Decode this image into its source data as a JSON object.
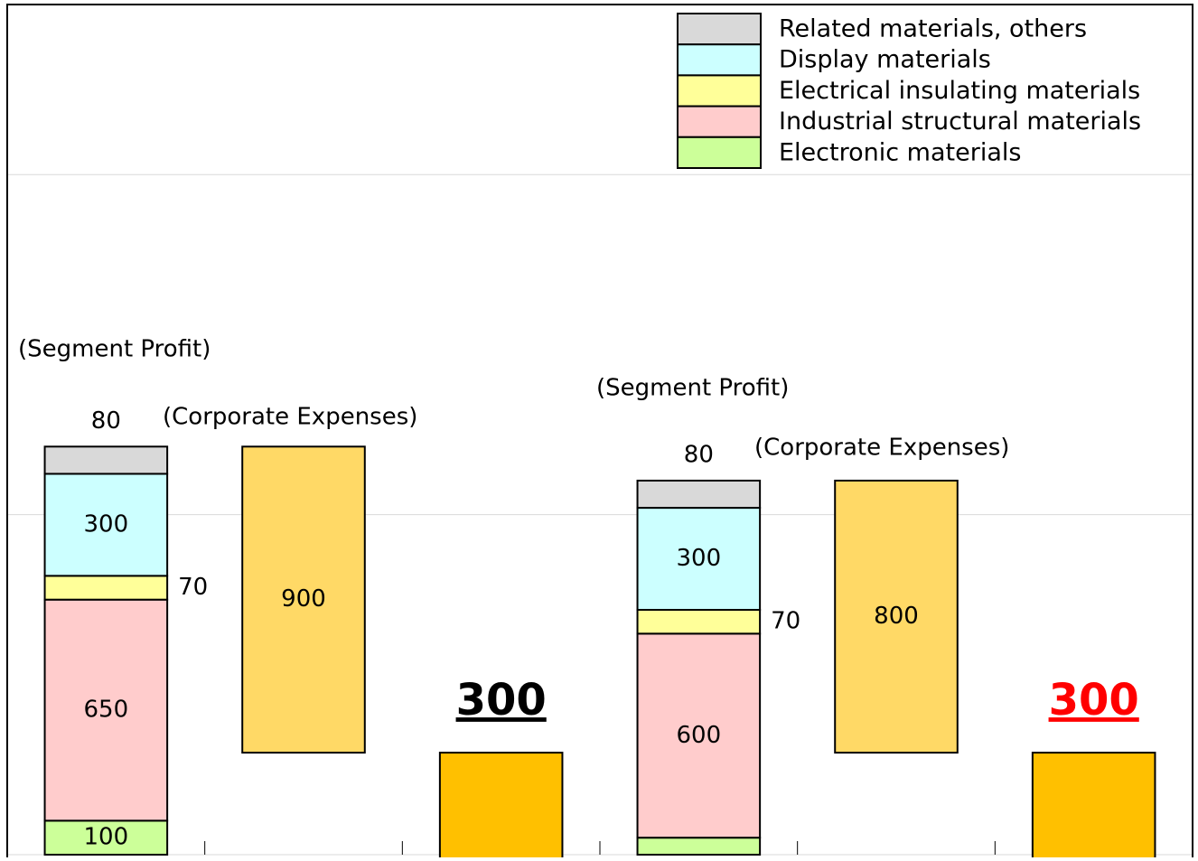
{
  "chart_data": {
    "type": "waterfall",
    "categories": [
      null,
      null,
      null,
      null,
      null,
      null
    ],
    "series": [
      {
        "name": "Electronic materials",
        "color": "#ccff99",
        "values": [
          100,
          null,
          null,
          50,
          null,
          null
        ]
      },
      {
        "name": "Industrial structural materials",
        "color": "#ffcccc",
        "values": [
          650,
          null,
          null,
          600,
          null,
          null
        ]
      },
      {
        "name": "Electrical insulating materials",
        "color": "#ffff99",
        "values": [
          70,
          null,
          null,
          70,
          null,
          null
        ]
      },
      {
        "name": "Display materials",
        "color": "#ccffff",
        "values": [
          300,
          null,
          null,
          300,
          null,
          null
        ]
      },
      {
        "name": "Related materials, others",
        "color": "#d9d9d9",
        "values": [
          80,
          null,
          null,
          80,
          null,
          null
        ]
      }
    ],
    "expenses": {
      "color": "#ffd966",
      "values": [
        null,
        900,
        null,
        null,
        800,
        null
      ]
    },
    "results": {
      "color": "#ffc000",
      "values": [
        null,
        null,
        300,
        null,
        null,
        300
      ],
      "label_colors": [
        null,
        null,
        "#000000",
        null,
        null,
        "#ff0000"
      ]
    },
    "annotations": [
      "(Segment Profit)",
      "(Corporate Expenses)",
      "(Segment Profit)",
      "(Corporate Expenses)"
    ],
    "ylim": [
      0,
      2500
    ],
    "yticks": [
      0,
      1000,
      2000
    ],
    "grid": true,
    "legend": "top-right"
  }
}
